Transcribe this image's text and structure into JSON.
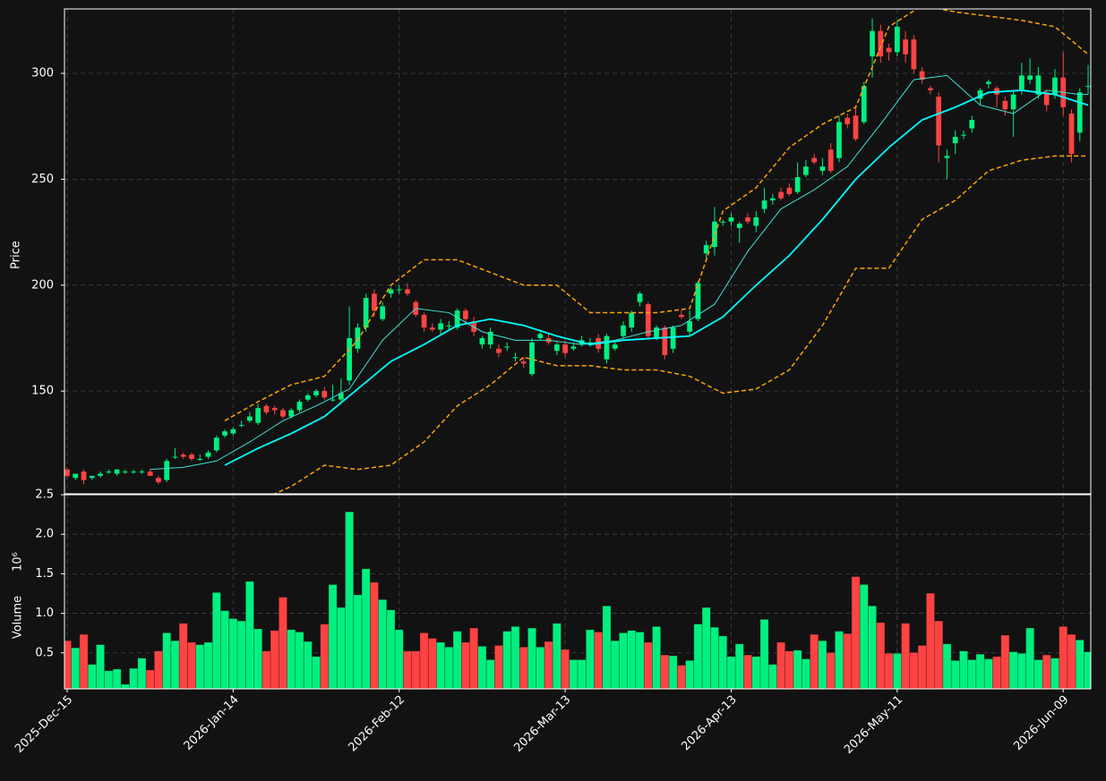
{
  "chart_data": {
    "type": "candlestick",
    "categories": [
      "2025-Dec-15",
      null,
      null,
      null,
      null,
      null,
      null,
      null,
      null,
      null,
      null,
      null,
      null,
      null,
      null,
      null,
      null,
      null,
      null,
      null,
      "2026-Jan-14",
      null,
      null,
      null,
      null,
      null,
      null,
      null,
      null,
      null,
      null,
      null,
      null,
      null,
      null,
      null,
      null,
      null,
      null,
      null,
      "2026-Feb-12",
      null,
      null,
      null,
      null,
      null,
      null,
      null,
      null,
      null,
      null,
      null,
      null,
      null,
      null,
      null,
      null,
      null,
      null,
      null,
      "2026-Mar-13",
      null,
      null,
      null,
      null,
      null,
      null,
      null,
      null,
      null,
      null,
      null,
      null,
      null,
      null,
      null,
      null,
      null,
      null,
      null,
      "2026-Apr-13",
      null,
      null,
      null,
      null,
      null,
      null,
      null,
      null,
      null,
      null,
      null,
      null,
      null,
      null,
      null,
      null,
      null,
      null,
      null,
      "2026-May-11",
      null,
      null,
      null,
      null,
      null,
      null,
      null,
      null,
      null,
      null,
      null,
      null,
      null,
      null,
      null,
      null,
      null,
      null,
      null,
      "2026-Jun-09",
      null,
      null,
      null
    ],
    "open": [
      113,
      109,
      112,
      109,
      110,
      112,
      111,
      112,
      112,
      112,
      112,
      109,
      108,
      119,
      120,
      120,
      118,
      119,
      122,
      129,
      130,
      134,
      136,
      135,
      143,
      142,
      141,
      138,
      141,
      146,
      148,
      150,
      146,
      146,
      155,
      170,
      180,
      196,
      184,
      196,
      198,
      198,
      192,
      186,
      180,
      179,
      181,
      180,
      188,
      183,
      172,
      172,
      170,
      171,
      166,
      164,
      158,
      175,
      175,
      169,
      172,
      170,
      172,
      173,
      175,
      165,
      170,
      176,
      180,
      192,
      191,
      175,
      180,
      170,
      186,
      178,
      184,
      215,
      218,
      230,
      230,
      227,
      232,
      228,
      236,
      240,
      244,
      246,
      244,
      252,
      260,
      254,
      264,
      260,
      279,
      280,
      277,
      308,
      320,
      312,
      310,
      316,
      316,
      301,
      293,
      289,
      260,
      267,
      271,
      274,
      288,
      295,
      293,
      287,
      283,
      292,
      297,
      290,
      291,
      290,
      298,
      281,
      272,
      294
    ],
    "high": [
      114,
      111,
      113,
      110,
      112,
      113,
      113,
      113,
      113,
      113,
      113,
      110,
      118,
      123,
      121,
      121,
      120,
      122,
      129,
      132,
      133,
      136,
      140,
      144,
      144,
      143,
      142,
      142,
      146,
      149,
      151,
      152,
      153,
      156,
      190,
      182,
      196,
      198,
      192,
      199,
      200,
      201,
      193,
      187,
      182,
      184,
      183,
      189,
      189,
      185,
      176,
      180,
      172,
      173,
      168,
      166,
      175,
      178,
      177,
      173,
      174,
      173,
      176,
      175,
      177,
      177,
      173,
      183,
      188,
      197,
      192,
      181,
      181,
      181,
      188,
      188,
      202,
      221,
      237,
      231,
      234,
      230,
      234,
      235,
      246,
      243,
      246,
      248,
      258,
      259,
      262,
      260,
      267,
      280,
      281,
      285,
      296,
      326,
      323,
      314,
      325,
      320,
      318,
      303,
      294,
      291,
      264,
      273,
      273,
      280,
      293,
      297,
      294,
      289,
      292,
      305,
      307,
      303,
      292,
      302,
      310,
      283,
      293,
      304
    ],
    "low": [
      109,
      108,
      106,
      108,
      109,
      111,
      110,
      111,
      111,
      111,
      110,
      106,
      107,
      118,
      118,
      117,
      117,
      118,
      121,
      128,
      129,
      133,
      135,
      134,
      139,
      139,
      137,
      137,
      140,
      145,
      147,
      146,
      145,
      145,
      153,
      168,
      178,
      185,
      183,
      194,
      196,
      195,
      185,
      178,
      178,
      177,
      179,
      179,
      182,
      176,
      170,
      170,
      166,
      169,
      164,
      161,
      157,
      174,
      172,
      167,
      166,
      169,
      171,
      171,
      168,
      163,
      169,
      175,
      178,
      190,
      175,
      174,
      165,
      168,
      184,
      176,
      183,
      212,
      214,
      228,
      228,
      220,
      229,
      225,
      234,
      238,
      240,
      242,
      243,
      251,
      257,
      252,
      253,
      258,
      274,
      268,
      276,
      298,
      305,
      306,
      308,
      305,
      300,
      295,
      290,
      258,
      250,
      262,
      269,
      272,
      285,
      293,
      284,
      280,
      270,
      290,
      295,
      288,
      282,
      288,
      280,
      258,
      268,
      290
    ],
    "close": [
      110,
      111,
      108,
      110,
      111,
      112,
      113,
      112,
      112,
      112,
      110,
      107,
      117,
      119,
      119,
      118,
      118,
      121,
      128,
      131,
      132,
      134,
      138,
      142,
      140,
      141,
      138,
      141,
      145,
      148,
      150,
      147,
      146,
      149,
      175,
      180,
      194,
      188,
      190,
      198,
      198,
      196,
      186,
      180,
      179,
      182,
      181,
      188,
      184,
      178,
      175,
      178,
      168,
      171,
      166,
      163,
      173,
      177,
      173,
      172,
      168,
      171,
      174,
      173,
      170,
      176,
      172,
      181,
      187,
      196,
      176,
      180,
      167,
      180,
      185,
      183,
      201,
      219,
      230,
      230,
      232,
      229,
      230,
      232,
      240,
      241,
      241,
      243,
      251,
      256,
      258,
      256,
      254,
      277,
      276,
      269,
      294,
      320,
      308,
      310,
      322,
      309,
      302,
      297,
      292,
      266,
      261,
      270,
      271,
      278,
      292,
      296,
      290,
      283,
      290,
      299,
      299,
      299,
      285,
      298,
      284,
      262,
      291,
      294
    ],
    "up_color": "#00f080",
    "down_color": "#ff4343",
    "ylim": [
      101.5,
      330.4
    ],
    "yticks": [
      150,
      200,
      250,
      300
    ],
    "y_label": "Price",
    "grid": true,
    "overlays": [
      {
        "x": [
          10,
          14,
          18,
          22,
          26,
          30,
          34,
          38,
          42,
          46,
          50,
          54,
          58,
          62,
          66,
          70,
          74,
          78,
          82,
          86,
          90,
          94,
          98,
          102,
          106,
          110,
          114,
          118,
          122,
          123
        ],
        "values": [
          113,
          114,
          117,
          126,
          136,
          143,
          151,
          174,
          189,
          187,
          178,
          174,
          174,
          172,
          174,
          178,
          181,
          191,
          216,
          236,
          245,
          256,
          276,
          297,
          299,
          285,
          281,
          292,
          290,
          290
        ],
        "color": "#40e0d0",
        "width": 1,
        "dashed": false
      },
      {
        "x": [
          19,
          23,
          27,
          31,
          35,
          39,
          43,
          47,
          51,
          55,
          59,
          63,
          67,
          71,
          75,
          79,
          83,
          87,
          91,
          95,
          99,
          103,
          107,
          111,
          115,
          119,
          123
        ],
        "values": [
          115,
          123,
          130,
          138,
          151,
          164,
          172,
          181,
          184,
          181,
          176,
          172,
          174,
          175,
          176,
          185,
          200,
          214,
          231,
          250,
          265,
          278,
          284,
          291,
          292,
          290,
          285
        ],
        "color": "#00ffff",
        "width": 1.8,
        "dashed": false
      },
      {
        "x": [
          19,
          23,
          27,
          31,
          35,
          39,
          43,
          47,
          51,
          55,
          59,
          63,
          67,
          71,
          75,
          79,
          83,
          87,
          91,
          95,
          99,
          103,
          107,
          111,
          115,
          119,
          123
        ],
        "values": [
          136,
          145,
          153,
          157,
          174,
          200,
          212,
          212,
          206,
          200,
          200,
          187,
          187,
          187,
          189,
          235,
          246,
          265,
          276,
          284,
          322,
          332,
          329,
          327,
          325,
          322,
          309
        ],
        "color": "#ffa500",
        "width": 1.5,
        "dashed": true
      },
      {
        "x": [
          19,
          23,
          27,
          31,
          35,
          39,
          43,
          47,
          51,
          55,
          59,
          63,
          67,
          71,
          75,
          79,
          83,
          87,
          91,
          95,
          99,
          103,
          107,
          111,
          115,
          119,
          123
        ],
        "values": [
          94,
          98,
          105,
          115,
          113,
          115,
          126,
          143,
          153,
          166,
          162,
          162,
          160,
          160,
          157,
          149,
          151,
          160,
          181,
          208,
          208,
          231,
          240,
          254,
          259,
          261,
          261
        ],
        "color": "#ffa500",
        "width": 1.5,
        "dashed": true
      }
    ],
    "volume": {
      "values": [
        0.65,
        0.56,
        0.73,
        0.35,
        0.6,
        0.27,
        0.29,
        0.1,
        0.3,
        0.43,
        0.28,
        0.52,
        0.75,
        0.65,
        0.87,
        0.63,
        0.6,
        0.63,
        1.26,
        1.03,
        0.93,
        0.9,
        1.4,
        0.8,
        0.52,
        0.78,
        1.2,
        0.79,
        0.76,
        0.64,
        0.45,
        0.86,
        1.36,
        1.07,
        2.28,
        1.23,
        1.56,
        1.39,
        1.17,
        1.04,
        0.79,
        0.52,
        0.52,
        0.75,
        0.68,
        0.63,
        0.57,
        0.77,
        0.63,
        0.81,
        0.58,
        0.41,
        0.59,
        0.77,
        0.83,
        0.57,
        0.81,
        0.57,
        0.64,
        0.87,
        0.54,
        0.41,
        0.41,
        0.79,
        0.76,
        1.09,
        0.65,
        0.75,
        0.78,
        0.76,
        0.63,
        0.83,
        0.47,
        0.46,
        0.34,
        0.4,
        0.86,
        1.07,
        0.82,
        0.71,
        0.45,
        0.61,
        0.47,
        0.45,
        0.92,
        0.35,
        0.63,
        0.52,
        0.53,
        0.42,
        0.73,
        0.65,
        0.5,
        0.77,
        0.74,
        1.46,
        1.36,
        1.09,
        0.88,
        0.49,
        0.49,
        0.87,
        0.5,
        0.59,
        1.25,
        0.9,
        0.61,
        0.4,
        0.52,
        0.41,
        0.48,
        0.42,
        0.45,
        0.72,
        0.51,
        0.49,
        0.81,
        0.41,
        0.47,
        0.43,
        0.83,
        0.73,
        0.66,
        0.51
      ],
      "ylim": [
        0.045,
        2.5
      ],
      "yticks": [
        0.5,
        {
          "value": 1,
          "label": "1.0"
        },
        1.5,
        {
          "value": 2,
          "label": "2.0"
        },
        2.5
      ],
      "y_label": "Volume",
      "scale_label": "10⁶"
    }
  }
}
